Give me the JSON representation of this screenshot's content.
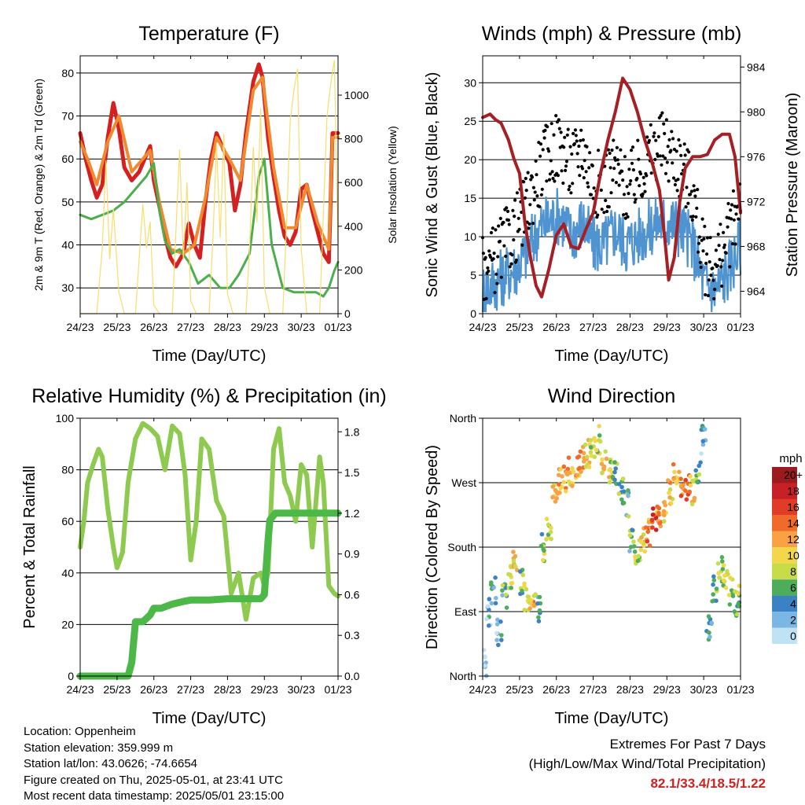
{
  "colors": {
    "temp2m": "#d42020",
    "temp9m": "#f08a30",
    "dewpoint": "#4cae4c",
    "solar": "#f7de6e",
    "wind": "#4f94d0",
    "gust": "#000000",
    "pressure": "#a51f24",
    "rh": "#8fca50",
    "precip": "#4cb848"
  },
  "chart_data": [
    {
      "type": "line",
      "title": "Temperature (F)",
      "xlabel": "Time (Day/UTC)",
      "ylabel": "2m & 9m T (Red, Orange) & 2m Td (Green)",
      "y2label": "Solar Insolation (Yellow)",
      "x_ticks": [
        "24/23",
        "25/23",
        "26/23",
        "27/23",
        "28/23",
        "29/23",
        "30/23",
        "01/23"
      ],
      "xlim": [
        0,
        7
      ],
      "ylim": [
        24,
        84
      ],
      "y_ticks": [
        30,
        40,
        50,
        60,
        70,
        80
      ],
      "y2lim": [
        0,
        1180
      ],
      "y2_ticks": [
        0,
        200,
        400,
        600,
        800,
        1000
      ],
      "grid": true,
      "series": [
        {
          "name": "2m T",
          "color_key": "temp2m",
          "axis": "y",
          "x": [
            0,
            0.15,
            0.3,
            0.45,
            0.6,
            0.75,
            0.9,
            1.05,
            1.2,
            1.4,
            1.6,
            1.75,
            1.9,
            2.0,
            2.15,
            2.3,
            2.45,
            2.6,
            2.8,
            2.95,
            3.1,
            3.25,
            3.4,
            3.55,
            3.7,
            3.85,
            4.05,
            4.2,
            4.35,
            4.5,
            4.7,
            4.85,
            4.95,
            5.1,
            5.25,
            5.4,
            5.55,
            5.7,
            5.85,
            6.0,
            6.15,
            6.3,
            6.45,
            6.6,
            6.75,
            6.85,
            7.0
          ],
          "y": [
            66,
            60,
            55,
            51,
            54,
            65,
            73,
            67,
            58,
            55,
            57,
            60,
            63,
            55,
            49,
            42,
            37,
            35,
            38,
            45,
            40,
            37,
            50,
            60,
            66,
            63,
            59,
            48,
            54,
            66,
            78,
            82,
            79,
            65,
            56,
            48,
            42,
            40,
            43,
            53,
            54,
            48,
            43,
            38,
            36,
            66,
            66
          ]
        },
        {
          "name": "9m T",
          "color_key": "temp9m",
          "axis": "y",
          "x": [
            0,
            0.2,
            0.45,
            0.75,
            1.05,
            1.4,
            1.9,
            2.15,
            2.45,
            2.8,
            3.1,
            3.4,
            3.7,
            4.05,
            4.35,
            4.7,
            4.95,
            5.25,
            5.55,
            5.85,
            6.15,
            6.45,
            6.75,
            6.85,
            7.0
          ],
          "y": [
            64,
            60,
            54,
            64,
            70,
            57,
            62,
            50,
            39,
            38,
            40,
            51,
            65,
            60,
            55,
            76,
            79,
            58,
            44,
            44,
            54,
            45,
            39,
            65,
            65
          ]
        },
        {
          "name": "2m Td",
          "color_key": "dewpoint",
          "axis": "y",
          "x": [
            0,
            0.3,
            0.6,
            0.9,
            1.2,
            1.5,
            1.8,
            2.0,
            2.15,
            2.3,
            2.5,
            2.7,
            2.95,
            3.2,
            3.5,
            3.8,
            4.05,
            4.3,
            4.6,
            4.85,
            5.0,
            5.2,
            5.5,
            5.8,
            6.1,
            6.4,
            6.6,
            6.75,
            6.9,
            7.0
          ],
          "y": [
            47,
            46,
            47,
            48,
            50,
            53,
            56,
            59,
            48,
            41,
            38,
            39,
            36,
            31,
            33,
            30,
            30,
            33,
            38,
            56,
            60,
            40,
            30,
            29,
            29,
            29,
            28,
            30,
            34,
            36
          ]
        },
        {
          "name": "Solar",
          "color_key": "solar",
          "axis": "y2",
          "x": [
            0,
            0.45,
            0.6,
            0.7,
            0.8,
            0.9,
            1.05,
            1.2,
            1.5,
            1.6,
            1.7,
            1.8,
            1.9,
            2.0,
            2.15,
            2.3,
            2.5,
            2.6,
            2.7,
            2.8,
            2.9,
            3.0,
            3.15,
            3.3,
            3.5,
            3.6,
            3.7,
            3.8,
            3.9,
            4.0,
            4.15,
            4.3,
            4.5,
            4.6,
            4.7,
            4.8,
            4.9,
            5.0,
            5.15,
            5.3,
            5.5,
            5.6,
            5.7,
            5.8,
            5.9,
            6.0,
            6.15,
            6.3,
            6.5,
            6.6,
            6.7,
            6.8,
            6.9,
            7.0
          ],
          "y": [
            0,
            0,
            300,
            700,
            250,
            480,
            100,
            0,
            0,
            250,
            500,
            300,
            420,
            40,
            0,
            0,
            0,
            380,
            750,
            250,
            600,
            60,
            0,
            0,
            0,
            330,
            780,
            350,
            820,
            90,
            0,
            0,
            0,
            300,
            760,
            420,
            940,
            120,
            0,
            0,
            0,
            400,
            880,
            1020,
            1120,
            300,
            0,
            0,
            0,
            450,
            900,
            1050,
            1160,
            300
          ]
        }
      ]
    },
    {
      "type": "line",
      "title": "Winds (mph) & Pressure (mb)",
      "xlabel": "Time (Day/UTC)",
      "ylabel": "Sonic Wind & Gust (Blue, Black)",
      "y2label": "Station Pressure (Maroon)",
      "x_ticks": [
        "24/23",
        "25/23",
        "26/23",
        "27/23",
        "28/23",
        "29/23",
        "30/23",
        "01/23"
      ],
      "xlim": [
        0,
        7
      ],
      "ylim": [
        0,
        33.5
      ],
      "y_ticks": [
        0,
        5,
        10,
        15,
        20,
        25,
        30
      ],
      "y2lim": [
        962,
        985
      ],
      "y2_ticks": [
        964,
        968,
        972,
        976,
        980,
        984
      ],
      "grid": true,
      "series": [
        {
          "name": "Sonic Wind",
          "color_key": "wind",
          "axis": "y",
          "x": [
            0,
            0.3,
            0.6,
            0.9,
            1.2,
            1.5,
            1.8,
            2.1,
            2.4,
            2.7,
            3.0,
            3.3,
            3.6,
            3.9,
            4.2,
            4.5,
            4.8,
            5.1,
            5.4,
            5.7,
            6.0,
            6.3,
            6.6,
            6.9,
            7.0
          ],
          "y": [
            3,
            4,
            5,
            6,
            8,
            11,
            12,
            13,
            10,
            12,
            9,
            9,
            11,
            9,
            10,
            11,
            12,
            12,
            11,
            9,
            4,
            3,
            5,
            8,
            9
          ]
        },
        {
          "name": "Sonic Gust",
          "color_key": "gust",
          "axis": "y",
          "x": [
            0,
            0.3,
            0.6,
            0.9,
            1.2,
            1.5,
            1.8,
            2.1,
            2.4,
            2.7,
            3.0,
            3.3,
            3.6,
            3.9,
            4.2,
            4.5,
            4.8,
            5.1,
            5.4,
            5.7,
            6.0,
            6.3,
            6.6,
            6.9,
            7.0
          ],
          "y": [
            6,
            7,
            9,
            11,
            14,
            18,
            21,
            22,
            19,
            22,
            17,
            17,
            19,
            16,
            18,
            20,
            22,
            21,
            19,
            16,
            7,
            6,
            9,
            13,
            17
          ]
        },
        {
          "name": "Station Pressure",
          "color_key": "pressure",
          "axis": "y2",
          "x": [
            0,
            0.2,
            0.35,
            0.5,
            0.7,
            0.85,
            1.0,
            1.15,
            1.3,
            1.45,
            1.6,
            1.8,
            2.0,
            2.2,
            2.4,
            2.6,
            2.8,
            3.0,
            3.2,
            3.4,
            3.6,
            3.8,
            4.0,
            4.2,
            4.4,
            4.6,
            4.8,
            4.95,
            5.05,
            5.2,
            5.35,
            5.5,
            5.7,
            5.9,
            6.1,
            6.3,
            6.5,
            6.7,
            6.85,
            7.0
          ],
          "y": [
            979.5,
            979.8,
            979.3,
            979.0,
            977.5,
            975.8,
            974.5,
            970.0,
            967.0,
            964.5,
            963.5,
            966.0,
            969.0,
            970.0,
            968.0,
            967.8,
            969.5,
            971.0,
            974.5,
            977.5,
            980.0,
            983.0,
            982.0,
            980.0,
            977.5,
            975.5,
            973.0,
            968.5,
            965.0,
            967.0,
            972.0,
            975.0,
            976.0,
            976.0,
            976.2,
            977.5,
            978.0,
            978.0,
            976.0,
            971.0
          ]
        }
      ]
    },
    {
      "type": "line",
      "title": "Relative Humidity (%) & Precipitation (in)",
      "xlabel": "Time (Day/UTC)",
      "ylabel": "Percent & Total Rainfall",
      "x_ticks": [
        "24/23",
        "25/23",
        "26/23",
        "27/23",
        "28/23",
        "29/23",
        "30/23",
        "01/23"
      ],
      "xlim": [
        0,
        7
      ],
      "ylim": [
        0,
        100
      ],
      "y_ticks": [
        0,
        20,
        40,
        60,
        80,
        100
      ],
      "y2lim": [
        0,
        1.9
      ],
      "y2_ticks": [
        0.0,
        0.3,
        0.6,
        0.9,
        1.2,
        1.5,
        1.8
      ],
      "grid": true,
      "series": [
        {
          "name": "Relative Humidity",
          "color_key": "rh",
          "axis": "y",
          "x": [
            0,
            0.1,
            0.2,
            0.35,
            0.5,
            0.6,
            0.75,
            0.9,
            1.0,
            1.15,
            1.3,
            1.5,
            1.7,
            1.9,
            2.1,
            2.3,
            2.5,
            2.7,
            2.85,
            3.0,
            3.15,
            3.3,
            3.5,
            3.7,
            3.9,
            4.1,
            4.3,
            4.5,
            4.7,
            4.9,
            5.0,
            5.1,
            5.25,
            5.4,
            5.55,
            5.7,
            5.85,
            6.0,
            6.15,
            6.3,
            6.5,
            6.6,
            6.75,
            6.9,
            7.0
          ],
          "y": [
            50,
            60,
            75,
            82,
            88,
            85,
            65,
            50,
            42,
            48,
            75,
            92,
            98,
            96,
            93,
            80,
            97,
            94,
            78,
            45,
            60,
            92,
            88,
            68,
            62,
            32,
            40,
            22,
            38,
            40,
            35,
            40,
            88,
            96,
            75,
            70,
            60,
            82,
            78,
            50,
            85,
            75,
            35,
            32,
            31
          ]
        },
        {
          "name": "Total Rainfall",
          "color_key": "precip",
          "axis": "y2",
          "x": [
            0,
            1.3,
            1.4,
            1.5,
            1.7,
            1.9,
            2.0,
            2.2,
            2.5,
            2.8,
            3.0,
            3.5,
            4.0,
            4.5,
            4.9,
            5.0,
            5.05,
            5.1,
            5.15,
            5.3,
            5.6,
            6.0,
            6.5,
            7.0
          ],
          "y": [
            0,
            0,
            0.1,
            0.4,
            0.4,
            0.45,
            0.5,
            0.5,
            0.53,
            0.55,
            0.56,
            0.56,
            0.57,
            0.57,
            0.57,
            0.6,
            0.8,
            1.0,
            1.15,
            1.2,
            1.2,
            1.2,
            1.2,
            1.2
          ]
        }
      ]
    },
    {
      "type": "scatter",
      "title": "Wind Direction",
      "xlabel": "Time (Day/UTC)",
      "ylabel": "Direction (Colored By Speed)",
      "x_ticks": [
        "24/23",
        "25/23",
        "26/23",
        "27/23",
        "28/23",
        "29/23",
        "30/23",
        "01/23"
      ],
      "xlim": [
        0,
        7
      ],
      "ylim": [
        0,
        360
      ],
      "y_tick_labels": [
        "North",
        "East",
        "South",
        "West",
        "North"
      ],
      "y_tick_values": [
        0,
        90,
        180,
        270,
        360
      ],
      "grid": true,
      "legend_title": "mph",
      "legend_labels": [
        "20+",
        "18",
        "16",
        "14",
        "12",
        "10",
        "8",
        "6",
        "4",
        "2",
        "0"
      ],
      "legend_colors": [
        "#9b1b1e",
        "#c82027",
        "#e03c28",
        "#f06a2a",
        "#f8a244",
        "#f2d74a",
        "#c8dc4a",
        "#4ead5b",
        "#3b82c4",
        "#7cb6e4",
        "#bfe3f5"
      ],
      "legend_placement": "right",
      "x": [
        0.05,
        0.15,
        0.3,
        0.45,
        0.6,
        0.75,
        0.9,
        1.05,
        1.2,
        1.35,
        1.5,
        1.65,
        1.8,
        1.95,
        2.1,
        2.25,
        2.4,
        2.55,
        2.7,
        2.85,
        3.0,
        3.15,
        3.3,
        3.45,
        3.6,
        3.75,
        3.9,
        4.05,
        4.2,
        4.35,
        4.5,
        4.65,
        4.8,
        4.95,
        5.1,
        5.25,
        5.4,
        5.55,
        5.7,
        5.85,
        6.0,
        6.15,
        6.3,
        6.45,
        6.6,
        6.75,
        6.9,
        7.0
      ],
      "y": [
        20,
        90,
        120,
        60,
        110,
        140,
        160,
        130,
        110,
        100,
        95,
        180,
        210,
        250,
        270,
        275,
        285,
        290,
        300,
        310,
        320,
        330,
        300,
        290,
        280,
        260,
        240,
        190,
        170,
        190,
        200,
        215,
        220,
        230,
        260,
        280,
        270,
        265,
        260,
        290,
        330,
        70,
        120,
        150,
        140,
        120,
        100,
        110
      ],
      "speed": [
        2,
        3,
        4,
        3,
        5,
        8,
        10,
        6,
        9,
        11,
        5,
        7,
        8,
        10,
        11,
        12,
        11,
        12,
        13,
        10,
        9,
        8,
        10,
        9,
        7,
        6,
        5,
        5,
        8,
        10,
        13,
        15,
        12,
        9,
        11,
        12,
        13,
        14,
        10,
        5,
        3,
        4,
        6,
        7,
        9,
        8,
        7,
        9
      ]
    }
  ],
  "info": {
    "location": "Location: Oppenheim",
    "elevation": "Station elevation: 359.999 m",
    "latlon": "Station lat/lon: 43.0626; -74.6654",
    "created": "Figure created on Thu, 2025-05-01, at 23:41 UTC",
    "recent": "Most recent data timestamp: 2025/05/01 23:15:00"
  },
  "extremes": {
    "title": "Extremes For Past 7 Days",
    "subtitle": "(High/Low/Max Wind/Total Precipitation)",
    "values": "82.1/33.4/18.5/1.22"
  }
}
